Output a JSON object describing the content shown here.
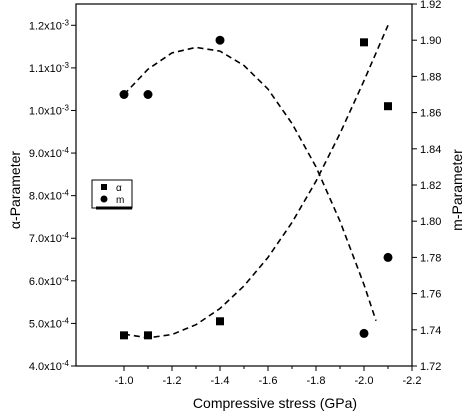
{
  "chart_data": {
    "type": "scatter",
    "xlabel": "Compressive stress (GPa)",
    "ylabel_left": "α-Parameter",
    "ylabel_right": "m-Parameter",
    "xlim": [
      -0.8,
      -2.2
    ],
    "ylim_left": [
      0.0004,
      0.00125
    ],
    "ylim_right": [
      1.72,
      1.92
    ],
    "x_ticks": [
      {
        "value": -1.0,
        "label": "-1.0"
      },
      {
        "value": -1.2,
        "label": "-1.2"
      },
      {
        "value": -1.4,
        "label": "-1.4"
      },
      {
        "value": -1.6,
        "label": "-1.6"
      },
      {
        "value": -1.8,
        "label": "-1.8"
      },
      {
        "value": -2.0,
        "label": "-2.0"
      },
      {
        "value": -2.2,
        "label": "-2.2"
      }
    ],
    "y_left_ticks": [
      {
        "value": 0.0004,
        "mantissa": "4.0x10",
        "exp": "-4"
      },
      {
        "value": 0.0005,
        "mantissa": "5.0x10",
        "exp": "-4"
      },
      {
        "value": 0.0006,
        "mantissa": "6.0x10",
        "exp": "-4"
      },
      {
        "value": 0.0007,
        "mantissa": "7.0x10",
        "exp": "-4"
      },
      {
        "value": 0.0008,
        "mantissa": "8.0x10",
        "exp": "-4"
      },
      {
        "value": 0.0009,
        "mantissa": "9.0x10",
        "exp": "-4"
      },
      {
        "value": 0.001,
        "mantissa": "1.0x10",
        "exp": "-3"
      },
      {
        "value": 0.0011,
        "mantissa": "1.1x10",
        "exp": "-3"
      },
      {
        "value": 0.0012,
        "mantissa": "1.2x10",
        "exp": "-3"
      }
    ],
    "y_right_ticks": [
      {
        "value": 1.72,
        "label": "1.72"
      },
      {
        "value": 1.74,
        "label": "1.74"
      },
      {
        "value": 1.76,
        "label": "1.76"
      },
      {
        "value": 1.78,
        "label": "1.78"
      },
      {
        "value": 1.8,
        "label": "1.80"
      },
      {
        "value": 1.82,
        "label": "1.82"
      },
      {
        "value": 1.84,
        "label": "1.84"
      },
      {
        "value": 1.86,
        "label": "1.86"
      },
      {
        "value": 1.88,
        "label": "1.88"
      },
      {
        "value": 1.9,
        "label": "1.90"
      },
      {
        "value": 1.92,
        "label": "1.92"
      }
    ],
    "series": [
      {
        "name": "α",
        "marker": "square",
        "axis": "left",
        "x": [
          -1.0,
          -1.1,
          -1.4,
          -2.0,
          -2.1
        ],
        "y": [
          0.000472,
          0.000472,
          0.000505,
          0.00116,
          0.00101
        ],
        "fit_curve": [
          [
            -1.0,
            0.000475
          ],
          [
            -1.1,
            0.000466
          ],
          [
            -1.2,
            0.000474
          ],
          [
            -1.3,
            0.000497
          ],
          [
            -1.4,
            0.000535
          ],
          [
            -1.5,
            0.000588
          ],
          [
            -1.6,
            0.000655
          ],
          [
            -1.7,
            0.000737
          ],
          [
            -1.8,
            0.000834
          ],
          [
            -1.9,
            0.000946
          ],
          [
            -2.0,
            0.00107
          ],
          [
            -2.1,
            0.0012
          ]
        ]
      },
      {
        "name": "m",
        "marker": "circle",
        "axis": "right",
        "x": [
          -1.0,
          -1.1,
          -1.4,
          -2.0,
          -2.1
        ],
        "y": [
          1.87,
          1.87,
          1.9,
          1.738,
          1.78
        ],
        "fit_curve": [
          [
            -1.0,
            1.87
          ],
          [
            -1.1,
            1.884
          ],
          [
            -1.2,
            1.893
          ],
          [
            -1.3,
            1.896
          ],
          [
            -1.4,
            1.894
          ],
          [
            -1.5,
            1.886
          ],
          [
            -1.6,
            1.873
          ],
          [
            -1.7,
            1.854
          ],
          [
            -1.8,
            1.83
          ],
          [
            -1.9,
            1.8
          ],
          [
            -2.0,
            1.765
          ],
          [
            -2.05,
            1.745
          ]
        ]
      }
    ],
    "legend": {
      "placement": "left-middle",
      "entries": [
        "α",
        "m"
      ]
    },
    "grid": false
  }
}
